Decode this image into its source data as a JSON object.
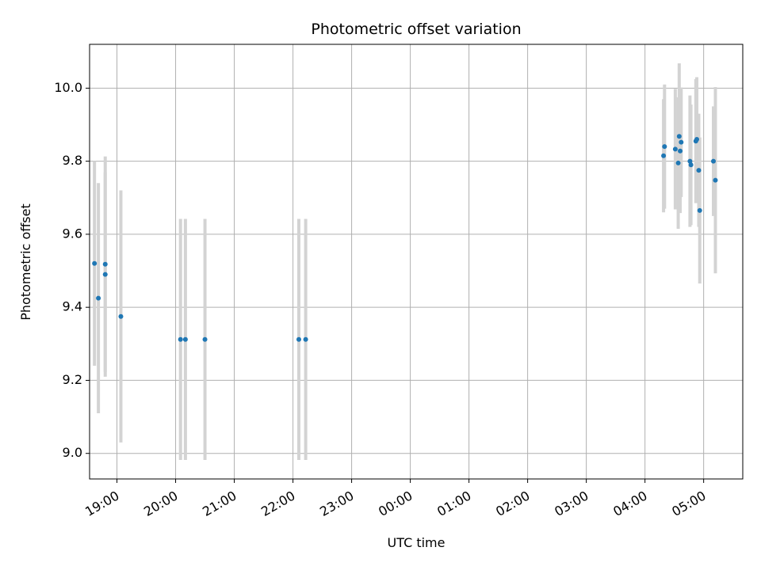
{
  "chart_data": {
    "type": "scatter",
    "title": "Photometric offset variation",
    "xlabel": "UTC time",
    "ylabel": "Photometric offset",
    "x_axis_type": "time",
    "xlim": [
      "18:32",
      "05:40"
    ],
    "ylim": [
      8.93,
      10.12
    ],
    "grid": true,
    "x_ticks": [
      "19:00",
      "20:00",
      "21:00",
      "22:00",
      "23:00",
      "00:00",
      "01:00",
      "02:00",
      "03:00",
      "04:00",
      "05:00"
    ],
    "y_ticks": [
      "9.0",
      "9.2",
      "9.4",
      "9.6",
      "9.8",
      "10.0"
    ],
    "colors": {
      "marker": "#1f77b4",
      "errorbar": "#d3d3d3",
      "grid": "#b0b0b0"
    },
    "points": [
      {
        "x": "18:37",
        "y": 9.52,
        "yerr": 0.28
      },
      {
        "x": "18:41",
        "y": 9.425,
        "yerr": 0.315
      },
      {
        "x": "18:48",
        "y": 9.518,
        "yerr": 0.295
      },
      {
        "x": "18:48",
        "y": 9.49,
        "yerr": 0.28
      },
      {
        "x": "19:04",
        "y": 9.375,
        "yerr": 0.345
      },
      {
        "x": "20:05",
        "y": 9.312,
        "yerr": 0.33
      },
      {
        "x": "20:10",
        "y": 9.312,
        "yerr": 0.33
      },
      {
        "x": "20:30",
        "y": 9.312,
        "yerr": 0.33
      },
      {
        "x": "22:06",
        "y": 9.312,
        "yerr": 0.33
      },
      {
        "x": "22:13",
        "y": 9.312,
        "yerr": 0.33
      },
      {
        "x": "04:19",
        "y": 9.815,
        "yerr": 0.155
      },
      {
        "x": "04:20",
        "y": 9.84,
        "yerr": 0.17
      },
      {
        "x": "04:31",
        "y": 9.833,
        "yerr": 0.165
      },
      {
        "x": "04:34",
        "y": 9.795,
        "yerr": 0.18
      },
      {
        "x": "04:35",
        "y": 9.868,
        "yerr": 0.2
      },
      {
        "x": "04:36",
        "y": 9.828,
        "yerr": 0.17
      },
      {
        "x": "04:37",
        "y": 9.852,
        "yerr": 0.15
      },
      {
        "x": "04:46",
        "y": 9.8,
        "yerr": 0.18
      },
      {
        "x": "04:47",
        "y": 9.79,
        "yerr": 0.165
      },
      {
        "x": "04:52",
        "y": 9.855,
        "yerr": 0.17
      },
      {
        "x": "04:53",
        "y": 9.86,
        "yerr": 0.17
      },
      {
        "x": "04:55",
        "y": 9.775,
        "yerr": 0.155
      },
      {
        "x": "04:56",
        "y": 9.665,
        "yerr": 0.2
      },
      {
        "x": "05:10",
        "y": 9.8,
        "yerr": 0.15
      },
      {
        "x": "05:12",
        "y": 9.748,
        "yerr": 0.255
      }
    ]
  }
}
